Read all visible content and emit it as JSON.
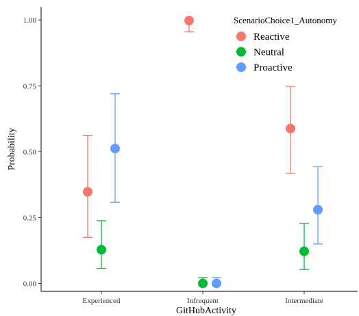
{
  "chart_data": {
    "type": "scatter",
    "xlabel": "GitHubActivity",
    "ylabel": "Probability",
    "categories": [
      "Experienced",
      "Infrequent",
      "Intermediate"
    ],
    "ylim": [
      -0.03,
      1.05
    ],
    "yticks": [
      0.0,
      0.25,
      0.5,
      0.75,
      1.0
    ],
    "ytick_labels": [
      "0.00",
      "0.25",
      "0.50",
      "0.75",
      "1.00"
    ],
    "grid": false,
    "legend": {
      "title": "ScenarioChoice1_Autonomy",
      "position": "top-right"
    },
    "series": [
      {
        "name": "Reactive",
        "color": "#F8766D",
        "values": [
          0.348,
          0.998,
          0.588
        ],
        "lower": [
          0.175,
          0.955,
          0.418
        ],
        "upper": [
          0.562,
          1.0,
          0.748
        ]
      },
      {
        "name": "Neutral",
        "color": "#00BA38",
        "values": [
          0.128,
          0.0,
          0.122
        ],
        "lower": [
          0.057,
          0.0,
          0.053
        ],
        "upper": [
          0.238,
          0.022,
          0.228
        ]
      },
      {
        "name": "Proactive",
        "color": "#619CFF",
        "values": [
          0.512,
          0.0,
          0.28
        ],
        "lower": [
          0.308,
          0.0,
          0.15
        ],
        "upper": [
          0.72,
          0.022,
          0.443
        ]
      }
    ]
  }
}
